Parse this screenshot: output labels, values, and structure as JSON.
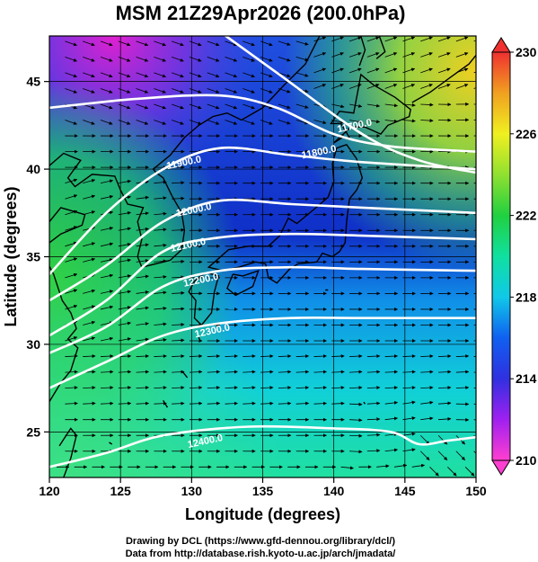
{
  "title": "MSM 21Z29Apr2026 (200.0hPa)",
  "footer": {
    "line1": "Drawing by DCL (https://www.gfd-dennou.org/library/dcl/)",
    "line2": "Data from http://database.rish.kyoto-u.ac.jp/arch/jmadata/"
  },
  "chart_data": {
    "type": "heatmap",
    "title": "MSM 21Z29Apr2026 (200.0hPa)",
    "xlabel": "Longitude (degrees)",
    "ylabel": "Latitude  (degrees)",
    "xlim": [
      120,
      150
    ],
    "ylim": [
      22.4,
      47.6
    ],
    "xticks": [
      120,
      125,
      130,
      135,
      140,
      145,
      150
    ],
    "yticks": [
      25,
      30,
      35,
      40,
      45
    ],
    "colorbar": {
      "range": [
        210,
        230
      ],
      "ticks": [
        210,
        214,
        218,
        222,
        226,
        230
      ],
      "colors": [
        "#ff3fd0",
        "#a020f0",
        "#3030e0",
        "#1060f0",
        "#10c8e8",
        "#10e0a0",
        "#20d040",
        "#90e030",
        "#f0f020",
        "#f0a020",
        "#f03030"
      ]
    },
    "contours": [
      {
        "label": "11700.0",
        "points": [
          [
            130,
            49
          ],
          [
            136,
            45.5
          ],
          [
            142,
            42
          ],
          [
            146,
            40.5
          ],
          [
            150,
            39.8
          ]
        ]
      },
      {
        "label": "11800.0",
        "points": [
          [
            120,
            43.5
          ],
          [
            126,
            44
          ],
          [
            132,
            44.2
          ],
          [
            136,
            43.5
          ],
          [
            140,
            42
          ],
          [
            144,
            41.3
          ],
          [
            150,
            41
          ]
        ]
      },
      {
        "label": "11900.0",
        "points": [
          [
            120,
            34
          ],
          [
            124,
            37.5
          ],
          [
            128,
            40
          ],
          [
            132,
            41.2
          ],
          [
            137,
            40.8
          ],
          [
            142,
            40.4
          ],
          [
            150,
            40
          ]
        ]
      },
      {
        "label": "12000.0",
        "points": [
          [
            120,
            32.5
          ],
          [
            124,
            34.5
          ],
          [
            128,
            37
          ],
          [
            132,
            38.2
          ],
          [
            137,
            38
          ],
          [
            142,
            37.8
          ],
          [
            150,
            37.5
          ]
        ]
      },
      {
        "label": "12100.0",
        "points": [
          [
            120,
            30.5
          ],
          [
            124,
            32.5
          ],
          [
            128,
            35.3
          ],
          [
            132,
            36.1
          ],
          [
            137,
            36.3
          ],
          [
            142,
            36.2
          ],
          [
            150,
            36
          ]
        ]
      },
      {
        "label": "12200.0",
        "points": [
          [
            120,
            29.5
          ],
          [
            124,
            31
          ],
          [
            128,
            33.3
          ],
          [
            132,
            34.2
          ],
          [
            137,
            34.4
          ],
          [
            142,
            34.3
          ],
          [
            150,
            34.2
          ]
        ]
      },
      {
        "label": "12300.0",
        "points": [
          [
            120,
            27.5
          ],
          [
            124,
            29
          ],
          [
            128,
            30.5
          ],
          [
            132,
            31.2
          ],
          [
            137,
            31.5
          ],
          [
            142,
            31.5
          ],
          [
            150,
            31.5
          ]
        ]
      },
      {
        "label": "12400.0",
        "points": [
          [
            120,
            23
          ],
          [
            124,
            23.8
          ],
          [
            128,
            24.8
          ],
          [
            134,
            25.3
          ],
          [
            140,
            25.2
          ],
          [
            144,
            25
          ],
          [
            146,
            24.3
          ],
          [
            148,
            24.5
          ],
          [
            150,
            24.7
          ]
        ]
      }
    ]
  }
}
